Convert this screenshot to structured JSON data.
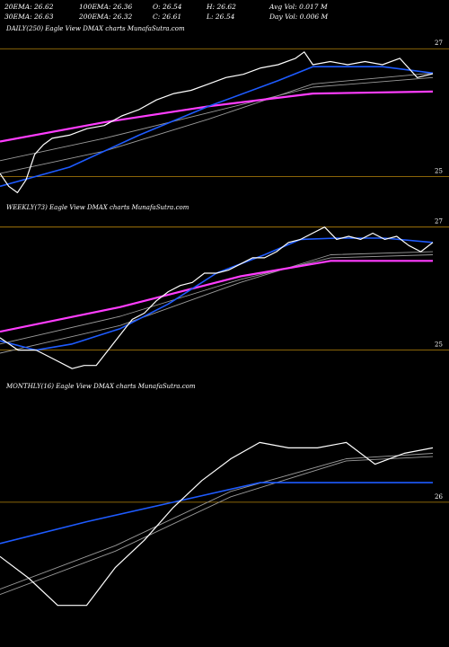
{
  "header": {
    "row1": [
      "20EMA: 26.62",
      "100EMA: 26.36",
      "O: 26.54",
      "H: 26.62",
      "Avg Vol: 0.017  M"
    ],
    "row2": [
      "30EMA: 26.63",
      "200EMA: 26.32",
      "C: 26.61",
      "L: 26.54",
      "Day Vol: 0.006  M"
    ]
  },
  "panels": [
    {
      "label": "DAILY(250) Eagle   View  DMAX  charts MunafaSutra.com"
    },
    {
      "label": "WEEKLY(73) Eagle   View  DMAX  charts MunafaSutra.com"
    },
    {
      "label": "MONTHLY(16) Eagle   View  DMAX  charts MunafaSutra.com"
    }
  ],
  "colors": {
    "background": "#000000",
    "price": "#ffffff",
    "ema_fast": "#1e5bff",
    "ema_slow": "#ff3dff",
    "grid": "#b8860b",
    "ma_gray": "#9a9a9a"
  },
  "chart_data": [
    {
      "type": "line",
      "title": "DAILY(250) Eagle   View  DMAX  charts MunafaSutra.com",
      "ylim": [
        24.7,
        27.2
      ],
      "y_ticks": [
        25,
        27
      ],
      "x_count": 250,
      "series": [
        {
          "role": "price",
          "x": [
            0,
            5,
            10,
            15,
            20,
            25,
            30,
            40,
            50,
            60,
            70,
            80,
            90,
            100,
            110,
            120,
            130,
            140,
            150,
            160,
            170,
            175,
            180,
            190,
            200,
            210,
            220,
            230,
            240,
            249
          ],
          "values": [
            25.05,
            24.85,
            24.75,
            24.95,
            25.35,
            25.5,
            25.6,
            25.65,
            25.75,
            25.8,
            25.95,
            26.05,
            26.2,
            26.3,
            26.35,
            26.45,
            26.55,
            26.6,
            26.7,
            26.75,
            26.85,
            26.95,
            26.75,
            26.8,
            26.75,
            26.8,
            26.75,
            26.85,
            26.55,
            26.61
          ]
        },
        {
          "role": "ema_fast",
          "x": [
            0,
            40,
            80,
            120,
            160,
            180,
            220,
            249
          ],
          "values": [
            24.85,
            25.15,
            25.65,
            26.1,
            26.5,
            26.72,
            26.72,
            26.62
          ]
        },
        {
          "role": "ema_slow",
          "x": [
            0,
            60,
            120,
            180,
            249
          ],
          "values": [
            25.55,
            25.85,
            26.1,
            26.3,
            26.33
          ]
        },
        {
          "role": "ma_gray",
          "x": [
            0,
            60,
            120,
            180,
            249
          ],
          "values": [
            25.25,
            25.6,
            26.0,
            26.4,
            26.55
          ]
        },
        {
          "role": "ma_gray",
          "x": [
            0,
            60,
            120,
            180,
            249
          ],
          "values": [
            25.05,
            25.4,
            25.9,
            26.45,
            26.62
          ]
        }
      ]
    },
    {
      "type": "line",
      "title": "WEEKLY(73) Eagle   View  DMAX  charts MunafaSutra.com",
      "ylim": [
        24.6,
        27.2
      ],
      "y_ticks": [
        25,
        27
      ],
      "x_count": 73,
      "series": [
        {
          "role": "price",
          "x": [
            0,
            3,
            6,
            9,
            12,
            14,
            16,
            18,
            20,
            22,
            24,
            26,
            28,
            30,
            32,
            34,
            36,
            38,
            40,
            42,
            44,
            46,
            48,
            50,
            52,
            54,
            56,
            58,
            60,
            62,
            64,
            66,
            68,
            70,
            72
          ],
          "values": [
            25.2,
            25.0,
            25.0,
            24.85,
            24.7,
            24.75,
            24.75,
            25.0,
            25.25,
            25.5,
            25.6,
            25.8,
            25.95,
            26.05,
            26.1,
            26.25,
            26.25,
            26.3,
            26.4,
            26.5,
            26.5,
            26.6,
            26.75,
            26.8,
            26.9,
            27.0,
            26.8,
            26.85,
            26.8,
            26.9,
            26.8,
            26.85,
            26.7,
            26.6,
            26.75
          ]
        },
        {
          "role": "ema_fast",
          "x": [
            0,
            6,
            12,
            20,
            28,
            36,
            44,
            50,
            56,
            64,
            72
          ],
          "values": [
            25.15,
            25.0,
            25.1,
            25.35,
            25.75,
            26.25,
            26.55,
            26.8,
            26.82,
            26.82,
            26.75
          ]
        },
        {
          "role": "ema_slow",
          "x": [
            0,
            20,
            40,
            55,
            72
          ],
          "values": [
            25.3,
            25.7,
            26.2,
            26.45,
            26.45
          ]
        },
        {
          "role": "ma_gray",
          "x": [
            0,
            20,
            40,
            55,
            72
          ],
          "values": [
            24.95,
            25.4,
            26.1,
            26.55,
            26.6
          ]
        },
        {
          "role": "ma_gray",
          "x": [
            0,
            20,
            40,
            55,
            72
          ],
          "values": [
            25.1,
            25.55,
            26.15,
            26.5,
            26.55
          ]
        }
      ]
    },
    {
      "type": "line",
      "title": "MONTHLY(16) Eagle   View  DMAX  charts MunafaSutra.com",
      "ylim": [
        24.7,
        27.0
      ],
      "y_ticks": [
        26
      ],
      "x_count": 16,
      "series": [
        {
          "role": "price",
          "x": [
            0,
            1,
            2,
            3,
            4,
            5,
            6,
            7,
            8,
            9,
            10,
            11,
            12,
            13,
            14,
            15
          ],
          "values": [
            25.5,
            25.3,
            25.05,
            25.05,
            25.4,
            25.65,
            25.95,
            26.2,
            26.4,
            26.55,
            26.5,
            26.5,
            26.55,
            26.35,
            26.45,
            26.5
          ]
        },
        {
          "role": "ema_fast",
          "x": [
            0,
            3,
            6,
            9,
            12,
            15
          ],
          "values": [
            25.62,
            25.82,
            26.0,
            26.18,
            26.18,
            26.18
          ]
        },
        {
          "role": "ma_gray",
          "x": [
            0,
            4,
            8,
            12,
            15
          ],
          "values": [
            25.2,
            25.6,
            26.1,
            26.4,
            26.45
          ]
        },
        {
          "role": "ma_gray",
          "x": [
            0,
            4,
            8,
            12,
            15
          ],
          "values": [
            25.15,
            25.55,
            26.05,
            26.38,
            26.42
          ]
        }
      ]
    }
  ]
}
